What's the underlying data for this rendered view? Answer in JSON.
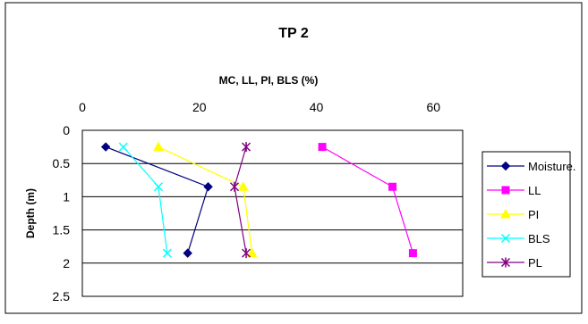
{
  "chart_data": {
    "type": "line",
    "title": "TP 2",
    "xlabel": "MC, LL, PI, BLS (%)",
    "ylabel": "Depth (m)",
    "xlim": [
      0,
      65
    ],
    "ylim": [
      0,
      2.5
    ],
    "x_axis_position": "top",
    "y_axis_reversed": true,
    "x_ticks": [
      0,
      20,
      40,
      60
    ],
    "y_ticks": [
      0,
      0.5,
      1,
      1.5,
      2,
      2.5
    ],
    "x_tick_labels": [
      "0",
      "20",
      "40",
      "60"
    ],
    "y_tick_labels": [
      "0",
      "0.5",
      "1",
      "1.5",
      "2",
      "2.5"
    ],
    "grid": "horizontal",
    "legend_position": "right",
    "series": [
      {
        "name": "Moisture.",
        "color": "#000080",
        "marker": "diamond",
        "x": [
          4,
          21.5,
          18
        ],
        "y": [
          0.25,
          0.85,
          1.85
        ]
      },
      {
        "name": "LL",
        "color": "#FF00FF",
        "marker": "square",
        "x": [
          41,
          53,
          56.5
        ],
        "y": [
          0.25,
          0.85,
          1.85
        ]
      },
      {
        "name": "PI",
        "color": "#FFFF00",
        "marker": "triangle",
        "x": [
          13,
          27.5,
          29
        ],
        "y": [
          0.25,
          0.85,
          1.85
        ]
      },
      {
        "name": "BLS",
        "color": "#00FFFF",
        "marker": "x",
        "x": [
          7,
          13,
          14.5
        ],
        "y": [
          0.25,
          0.85,
          1.85
        ]
      },
      {
        "name": "PL",
        "color": "#800080",
        "marker": "star",
        "x": [
          28,
          26,
          28
        ],
        "y": [
          0.25,
          0.85,
          1.85
        ]
      }
    ]
  }
}
